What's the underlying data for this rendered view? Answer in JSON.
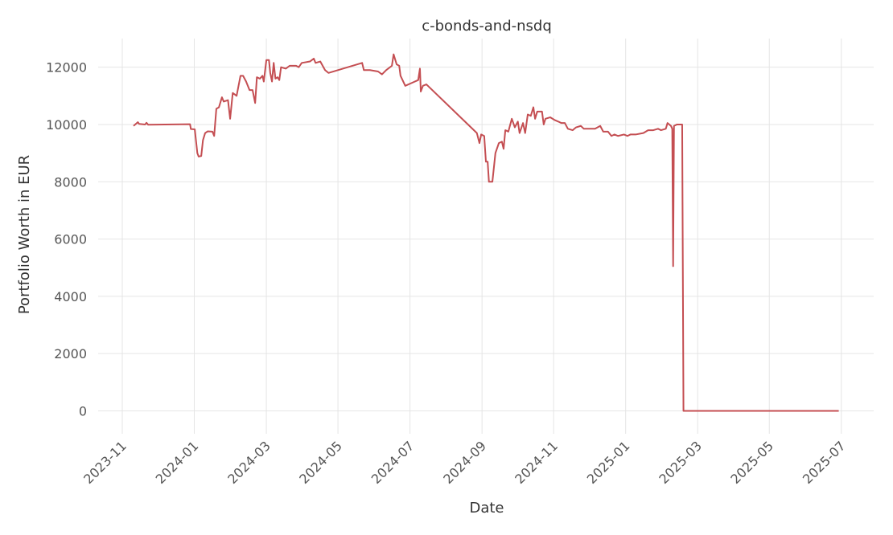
{
  "chart_data": {
    "type": "line",
    "title": "c-bonds-and-nsdq",
    "x_label": "Date",
    "y_label": "Portfolio Worth in EUR",
    "x": [
      2023.859,
      2023.869,
      2023.872,
      2023.886,
      2023.889,
      2023.893,
      2023.99,
      2023.992,
      2024.001,
      2024.007,
      2024.01,
      2024.016,
      2024.02,
      2024.025,
      2024.031,
      2024.042,
      2024.046,
      2024.051,
      2024.057,
      2024.064,
      2024.068,
      2024.078,
      2024.083,
      2024.089,
      2024.098,
      2024.107,
      2024.113,
      2024.12,
      2024.128,
      2024.135,
      2024.141,
      2024.145,
      2024.152,
      2024.158,
      2024.161,
      2024.167,
      2024.173,
      2024.176,
      2024.18,
      2024.184,
      2024.188,
      2024.193,
      2024.197,
      2024.201,
      2024.212,
      2024.221,
      2024.236,
      2024.242,
      2024.249,
      2024.268,
      2024.277,
      2024.281,
      2024.292,
      2024.303,
      2024.311,
      2024.389,
      2024.393,
      2024.407,
      2024.426,
      2024.435,
      2024.445,
      2024.458,
      2024.462,
      2024.469,
      2024.475,
      2024.478,
      2024.489,
      2024.504,
      2024.519,
      2024.523,
      2024.525,
      2024.53,
      2024.538,
      2024.655,
      2024.661,
      2024.665,
      2024.672,
      2024.676,
      2024.68,
      2024.683,
      2024.691,
      2024.698,
      2024.706,
      2024.713,
      2024.717,
      2024.721,
      2024.728,
      2024.736,
      2024.743,
      2024.75,
      2024.754,
      2024.762,
      2024.767,
      2024.773,
      2024.78,
      2024.786,
      2024.79,
      2024.795,
      2024.806,
      2024.81,
      2024.814,
      2024.825,
      2024.836,
      2024.844,
      2024.851,
      2024.859,
      2024.866,
      2024.877,
      2024.885,
      2024.896,
      2024.903,
      2024.914,
      2024.929,
      2024.941,
      2024.948,
      2024.959,
      2024.967,
      2024.974,
      2024.982,
      2024.996,
      2025.004,
      2025.011,
      2025.023,
      2025.041,
      2025.052,
      2025.064,
      2025.075,
      2025.082,
      2025.093,
      2025.097,
      2025.105,
      2025.108,
      2025.11,
      2025.112,
      2025.119,
      2025.131,
      2025.134,
      2025.494
    ],
    "values": [
      9950,
      10080,
      10020,
      10000,
      10060,
      9990,
      10010,
      9840,
      9830,
      9000,
      8880,
      8900,
      9450,
      9700,
      9760,
      9750,
      9600,
      10550,
      10600,
      10950,
      10800,
      10850,
      10200,
      11100,
      11000,
      11700,
      11700,
      11500,
      11200,
      11200,
      10750,
      11650,
      11600,
      11700,
      11500,
      12250,
      12250,
      11800,
      11500,
      12150,
      11600,
      11650,
      11550,
      12000,
      11950,
      12050,
      12050,
      12000,
      12150,
      12200,
      12300,
      12150,
      12200,
      11900,
      11800,
      12150,
      11900,
      11900,
      11850,
      11750,
      11900,
      12050,
      12450,
      12100,
      12050,
      11700,
      11350,
      11450,
      11550,
      11950,
      11150,
      11350,
      11400,
      9700,
      9350,
      9650,
      9600,
      8700,
      8700,
      8000,
      8000,
      9000,
      9350,
      9400,
      9150,
      9800,
      9750,
      10200,
      9900,
      10100,
      9700,
      10050,
      9700,
      10350,
      10300,
      10600,
      10200,
      10450,
      10450,
      10000,
      10200,
      10250,
      10150,
      10100,
      10050,
      10050,
      9850,
      9800,
      9900,
      9950,
      9850,
      9850,
      9850,
      9950,
      9750,
      9750,
      9600,
      9650,
      9600,
      9650,
      9600,
      9650,
      9650,
      9700,
      9800,
      9800,
      9850,
      9800,
      9850,
      10050,
      9950,
      9850,
      5050,
      9950,
      10000,
      10000,
      0,
      0
    ],
    "color": "#c44e52",
    "xlim": [
      2023.777,
      2025.575
    ],
    "xticks": [
      {
        "value": 2023.833,
        "label": "2023-11"
      },
      {
        "value": 2024.0,
        "label": "2024-01"
      },
      {
        "value": 2024.167,
        "label": "2024-03"
      },
      {
        "value": 2024.333,
        "label": "2024-05"
      },
      {
        "value": 2024.5,
        "label": "2024-07"
      },
      {
        "value": 2024.667,
        "label": "2024-09"
      },
      {
        "value": 2024.833,
        "label": "2024-11"
      },
      {
        "value": 2025.0,
        "label": "2025-01"
      },
      {
        "value": 2025.167,
        "label": "2025-03"
      },
      {
        "value": 2025.333,
        "label": "2025-05"
      },
      {
        "value": 2025.5,
        "label": "2025-07"
      }
    ],
    "ylim": [
      -800,
      13000
    ],
    "yticks": [
      0,
      2000,
      4000,
      6000,
      8000,
      10000,
      12000
    ],
    "grid": true
  }
}
